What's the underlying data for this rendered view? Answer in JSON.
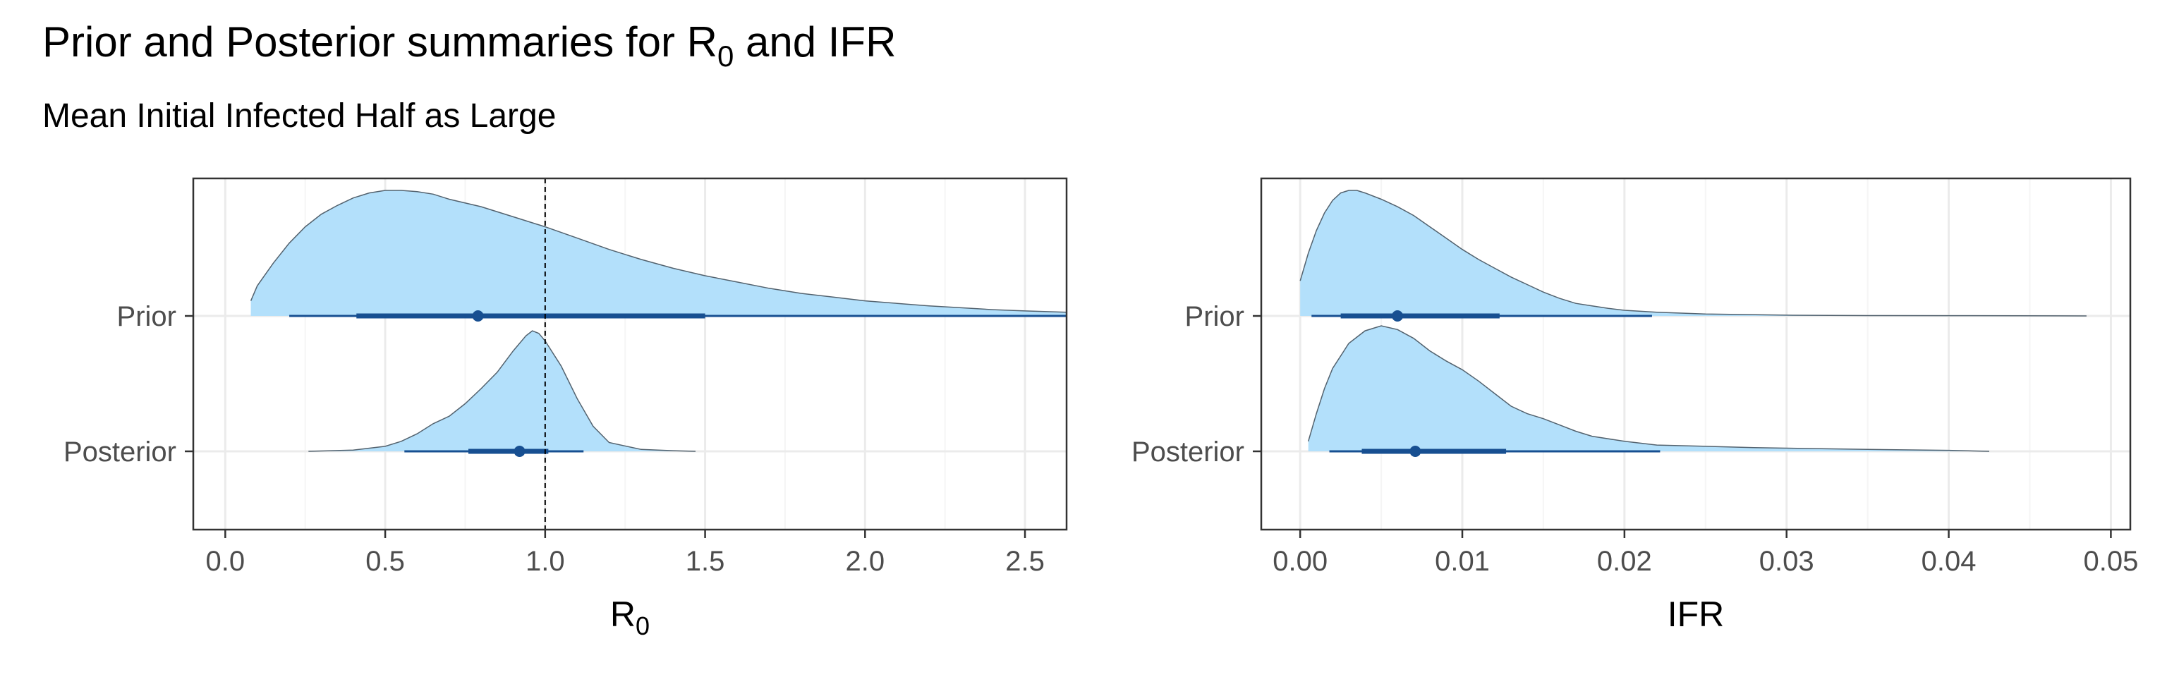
{
  "title": {
    "text": "Prior and Posterior summaries for R",
    "sub": "0",
    "tail": " and IFR"
  },
  "subtitle": "Mean Initial Infected Half as Large",
  "colors": {
    "fill": "#b3e0fb",
    "outline": "#53626e",
    "interval": "#174f91",
    "grid_major": "#ebebeb",
    "grid_minor": "#f5f5f5",
    "panel_border": "#333333"
  },
  "chart_data": [
    {
      "type": "area",
      "panel": "R0",
      "xlabel": {
        "text": "R",
        "sub": "0"
      },
      "ylabel": "",
      "xlim": [
        -0.1,
        2.63
      ],
      "xticks": [
        0.0,
        0.5,
        1.0,
        1.5,
        2.0,
        2.5
      ],
      "xtick_labels": [
        "0.0",
        "0.5",
        "1.0",
        "1.5",
        "2.0",
        "2.5"
      ],
      "reference_line": 1.0,
      "categories": [
        "Prior",
        "Posterior"
      ],
      "series": [
        {
          "name": "Prior",
          "density": [
            [
              0.08,
              0.12
            ],
            [
              0.1,
              0.24
            ],
            [
              0.15,
              0.42
            ],
            [
              0.2,
              0.58
            ],
            [
              0.25,
              0.71
            ],
            [
              0.3,
              0.81
            ],
            [
              0.35,
              0.88
            ],
            [
              0.4,
              0.94
            ],
            [
              0.45,
              0.98
            ],
            [
              0.5,
              1.0
            ],
            [
              0.55,
              1.0
            ],
            [
              0.6,
              0.99
            ],
            [
              0.65,
              0.97
            ],
            [
              0.7,
              0.93
            ],
            [
              0.8,
              0.87
            ],
            [
              0.9,
              0.79
            ],
            [
              1.0,
              0.71
            ],
            [
              1.1,
              0.62
            ],
            [
              1.2,
              0.53
            ],
            [
              1.3,
              0.45
            ],
            [
              1.4,
              0.38
            ],
            [
              1.5,
              0.32
            ],
            [
              1.6,
              0.27
            ],
            [
              1.7,
              0.22
            ],
            [
              1.8,
              0.18
            ],
            [
              1.9,
              0.15
            ],
            [
              2.0,
              0.12
            ],
            [
              2.1,
              0.1
            ],
            [
              2.2,
              0.08
            ],
            [
              2.3,
              0.065
            ],
            [
              2.4,
              0.05
            ],
            [
              2.5,
              0.04
            ],
            [
              2.63,
              0.03
            ]
          ],
          "point": 0.79,
          "inner_interval": [
            0.41,
            1.5
          ],
          "outer_interval": [
            0.2,
            2.63
          ]
        },
        {
          "name": "Posterior",
          "density": [
            [
              0.26,
              0.0
            ],
            [
              0.4,
              0.01
            ],
            [
              0.5,
              0.04
            ],
            [
              0.55,
              0.08
            ],
            [
              0.6,
              0.14
            ],
            [
              0.65,
              0.22
            ],
            [
              0.7,
              0.28
            ],
            [
              0.75,
              0.38
            ],
            [
              0.8,
              0.5
            ],
            [
              0.85,
              0.63
            ],
            [
              0.9,
              0.8
            ],
            [
              0.94,
              0.92
            ],
            [
              0.96,
              0.96
            ],
            [
              0.98,
              0.94
            ],
            [
              1.0,
              0.88
            ],
            [
              1.05,
              0.68
            ],
            [
              1.1,
              0.42
            ],
            [
              1.15,
              0.2
            ],
            [
              1.2,
              0.07
            ],
            [
              1.3,
              0.015
            ],
            [
              1.4,
              0.005
            ],
            [
              1.47,
              0.0
            ]
          ],
          "point": 0.92,
          "inner_interval": [
            0.76,
            1.01
          ],
          "outer_interval": [
            0.56,
            1.12
          ]
        }
      ]
    },
    {
      "type": "area",
      "panel": "IFR",
      "xlabel": {
        "text": "IFR",
        "sub": ""
      },
      "ylabel": "",
      "xlim": [
        -0.0024,
        0.0512
      ],
      "xticks": [
        0.0,
        0.01,
        0.02,
        0.03,
        0.04,
        0.05
      ],
      "xtick_labels": [
        "0.00",
        "0.01",
        "0.02",
        "0.03",
        "0.04",
        "0.05"
      ],
      "reference_line": null,
      "categories": [
        "Prior",
        "Posterior"
      ],
      "series": [
        {
          "name": "Prior",
          "density": [
            [
              0.0,
              0.28
            ],
            [
              0.0005,
              0.5
            ],
            [
              0.001,
              0.68
            ],
            [
              0.0015,
              0.82
            ],
            [
              0.002,
              0.92
            ],
            [
              0.0025,
              0.98
            ],
            [
              0.003,
              1.0
            ],
            [
              0.0035,
              1.0
            ],
            [
              0.004,
              0.98
            ],
            [
              0.005,
              0.93
            ],
            [
              0.006,
              0.87
            ],
            [
              0.007,
              0.8
            ],
            [
              0.008,
              0.71
            ],
            [
              0.009,
              0.62
            ],
            [
              0.01,
              0.53
            ],
            [
              0.011,
              0.45
            ],
            [
              0.012,
              0.38
            ],
            [
              0.013,
              0.31
            ],
            [
              0.014,
              0.25
            ],
            [
              0.015,
              0.19
            ],
            [
              0.016,
              0.14
            ],
            [
              0.017,
              0.1
            ],
            [
              0.018,
              0.08
            ],
            [
              0.019,
              0.06
            ],
            [
              0.02,
              0.045
            ],
            [
              0.022,
              0.03
            ],
            [
              0.025,
              0.015
            ],
            [
              0.03,
              0.006
            ],
            [
              0.035,
              0.003
            ],
            [
              0.04,
              0.002
            ],
            [
              0.0485,
              0.0
            ]
          ],
          "point": 0.006,
          "inner_interval": [
            0.0025,
            0.0123
          ],
          "outer_interval": [
            0.0007,
            0.0217
          ]
        },
        {
          "name": "Posterior",
          "density": [
            [
              0.0005,
              0.08
            ],
            [
              0.001,
              0.3
            ],
            [
              0.0015,
              0.5
            ],
            [
              0.002,
              0.66
            ],
            [
              0.003,
              0.86
            ],
            [
              0.004,
              0.96
            ],
            [
              0.005,
              1.0
            ],
            [
              0.006,
              0.97
            ],
            [
              0.007,
              0.9
            ],
            [
              0.008,
              0.8
            ],
            [
              0.009,
              0.72
            ],
            [
              0.01,
              0.65
            ],
            [
              0.011,
              0.56
            ],
            [
              0.012,
              0.46
            ],
            [
              0.013,
              0.36
            ],
            [
              0.014,
              0.3
            ],
            [
              0.015,
              0.26
            ],
            [
              0.016,
              0.21
            ],
            [
              0.017,
              0.16
            ],
            [
              0.018,
              0.12
            ],
            [
              0.02,
              0.08
            ],
            [
              0.022,
              0.05
            ],
            [
              0.025,
              0.04
            ],
            [
              0.028,
              0.03
            ],
            [
              0.03,
              0.025
            ],
            [
              0.035,
              0.015
            ],
            [
              0.04,
              0.008
            ],
            [
              0.0425,
              0.0
            ]
          ],
          "point": 0.0071,
          "inner_interval": [
            0.0038,
            0.0127
          ],
          "outer_interval": [
            0.0018,
            0.0222
          ]
        }
      ]
    }
  ]
}
